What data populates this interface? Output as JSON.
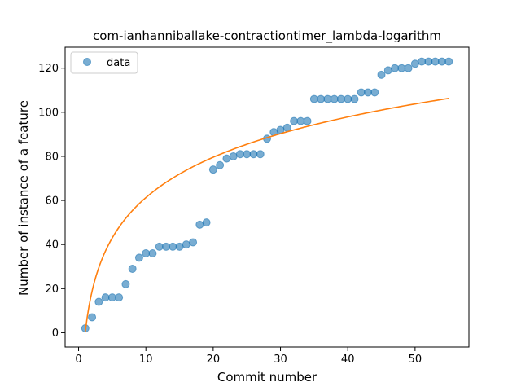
{
  "chart_data": {
    "type": "scatter",
    "title": "com-ianhanniballake-contractiontimer_lambda-logarithm",
    "xlabel": "Commit number",
    "ylabel": "Number of instance of a feature",
    "xlim": [
      -2,
      58
    ],
    "ylim": [
      -6.5,
      129.5
    ],
    "xticks": [
      0,
      10,
      20,
      30,
      40,
      50
    ],
    "yticks": [
      0,
      20,
      40,
      60,
      80,
      100,
      120
    ],
    "grid": false,
    "legend_position": "top-left",
    "series": [
      {
        "name": "data",
        "kind": "scatter",
        "color": "#1f77b4",
        "x": [
          1,
          2,
          3,
          4,
          5,
          6,
          7,
          8,
          9,
          10,
          11,
          12,
          13,
          14,
          15,
          16,
          17,
          18,
          19,
          20,
          21,
          22,
          23,
          24,
          25,
          26,
          27,
          28,
          29,
          30,
          31,
          32,
          33,
          34,
          35,
          36,
          37,
          38,
          39,
          40,
          41,
          42,
          43,
          44,
          45,
          46,
          47,
          48,
          49,
          50,
          51,
          52,
          53,
          54,
          55
        ],
        "y": [
          2,
          7,
          14,
          16,
          16,
          16,
          22,
          29,
          34,
          36,
          36,
          39,
          39,
          39,
          39,
          40,
          41,
          49,
          50,
          74,
          76,
          79,
          80,
          81,
          81,
          81,
          81,
          88,
          91,
          92,
          93,
          96,
          96,
          96,
          106,
          106,
          106,
          106,
          106,
          106,
          106,
          109,
          109,
          109,
          117,
          119,
          120,
          120,
          120,
          122,
          123,
          123,
          123,
          123,
          123
        ]
      },
      {
        "kind": "line",
        "color": "#ff7f0e",
        "formula": "y = a + b*ln(x)",
        "a": 0.5,
        "b": 26.4,
        "x_range": [
          1,
          55
        ]
      }
    ]
  }
}
